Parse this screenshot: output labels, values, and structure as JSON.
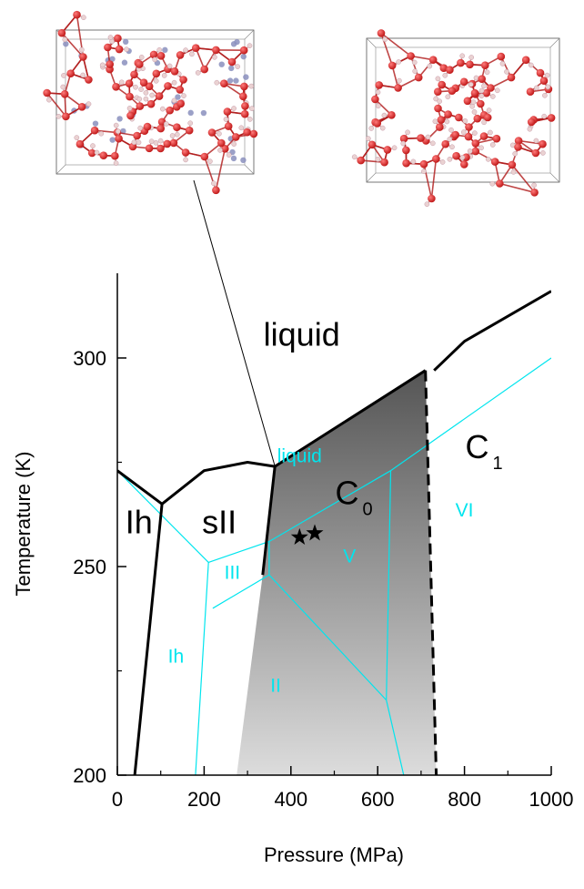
{
  "chart_data": {
    "type": "phase-diagram",
    "xlabel": "Pressure (MPa)",
    "ylabel": "Temperature (K)",
    "xlim": [
      0,
      1000
    ],
    "ylim": [
      200,
      320
    ],
    "x_ticks": [
      "0",
      "200",
      "400",
      "600",
      "800",
      "1000"
    ],
    "y_ticks": [
      "200",
      "250",
      "300"
    ],
    "y_tick_values": [
      200,
      250,
      300
    ],
    "x_tick_values": [
      0,
      200,
      400,
      600,
      800,
      1000
    ],
    "colors": {
      "boundary": "#000000",
      "water_phase": "#00e5ee",
      "shade_dark": "#555555",
      "shade_light": "#dcdcdc"
    },
    "black_boundaries": [
      {
        "id": "ih-sii",
        "style": "solid",
        "points": [
          [
            40,
            200
          ],
          [
            103,
            265
          ]
        ]
      },
      {
        "id": "ih-liquid",
        "style": "solid",
        "points": [
          [
            0,
            273
          ],
          [
            103,
            265
          ]
        ]
      },
      {
        "id": "sii-liquid",
        "style": "solid",
        "points": [
          [
            103,
            265
          ],
          [
            200,
            273
          ],
          [
            300,
            275
          ],
          [
            363,
            274
          ]
        ]
      },
      {
        "id": "sii-c0",
        "style": "solid",
        "points": [
          [
            335,
            248
          ],
          [
            363,
            274
          ]
        ]
      },
      {
        "id": "c0-liquid",
        "style": "solid",
        "points": [
          [
            363,
            274
          ],
          [
            710,
            297
          ]
        ]
      },
      {
        "id": "c0-c1",
        "style": "dashed",
        "points": [
          [
            710,
            297
          ],
          [
            735,
            200
          ]
        ]
      },
      {
        "id": "c1-liquid",
        "style": "solid",
        "points": [
          [
            730,
            297
          ],
          [
            800,
            304
          ],
          [
            1000,
            316
          ]
        ]
      }
    ],
    "water_boundaries": [
      {
        "id": "ice-melting",
        "points": [
          [
            0,
            273
          ],
          [
            210,
            251
          ],
          [
            350,
            256
          ],
          [
            630,
            273
          ],
          [
            1000,
            300
          ]
        ]
      },
      {
        "id": "ih-iii",
        "points": [
          [
            180,
            200
          ],
          [
            210,
            251
          ]
        ]
      },
      {
        "id": "iii-ii",
        "points": [
          [
            220,
            240
          ],
          [
            350,
            248
          ],
          [
            350,
            256
          ]
        ]
      },
      {
        "id": "ii-v",
        "points": [
          [
            350,
            248
          ],
          [
            620,
            218
          ]
        ]
      },
      {
        "id": "v-vi",
        "points": [
          [
            620,
            218
          ],
          [
            630,
            273
          ]
        ]
      },
      {
        "id": "ii-vi",
        "points": [
          [
            620,
            218
          ],
          [
            660,
            200
          ]
        ]
      }
    ],
    "shaded_region": {
      "id": "c0-stability",
      "points": [
        [
          275,
          200
        ],
        [
          335,
          248
        ],
        [
          363,
          274
        ],
        [
          710,
          297
        ],
        [
          735,
          200
        ]
      ]
    },
    "stars": [
      [
        420,
        257
      ],
      [
        455,
        258
      ]
    ],
    "phase_labels": [
      {
        "text": "liquid",
        "x": 425,
        "y": 303,
        "color": "black"
      },
      {
        "text": "liquid",
        "x": 420,
        "y": 275,
        "color": "water"
      },
      {
        "text": "Ih",
        "x": 50,
        "y": 258,
        "color": "black"
      },
      {
        "text": "sII",
        "x": 235,
        "y": 258,
        "color": "black"
      },
      {
        "text": "C",
        "x": 545,
        "y": 265,
        "color": "black",
        "subscript": "0"
      },
      {
        "text": "C",
        "x": 845,
        "y": 276,
        "color": "black",
        "subscript": "1"
      },
      {
        "text": "VI",
        "x": 800,
        "y": 262,
        "color": "water"
      },
      {
        "text": "V",
        "x": 535,
        "y": 251,
        "color": "water"
      },
      {
        "text": "III",
        "x": 265,
        "y": 247,
        "color": "water"
      },
      {
        "text": "Ih",
        "x": 135,
        "y": 227,
        "color": "water"
      },
      {
        "text": "II",
        "x": 365,
        "y": 220,
        "color": "water"
      }
    ]
  },
  "insets": [
    {
      "name": "left-structure-inset",
      "has_guest_atoms": true
    },
    {
      "name": "right-structure-inset",
      "has_guest_atoms": false
    }
  ],
  "atom_colors": {
    "oxygen": "#c11a1a",
    "oxygen_highlight": "#ff7b7b",
    "hydrogen": "#ead2d2",
    "guest": "#8a8fbd"
  }
}
